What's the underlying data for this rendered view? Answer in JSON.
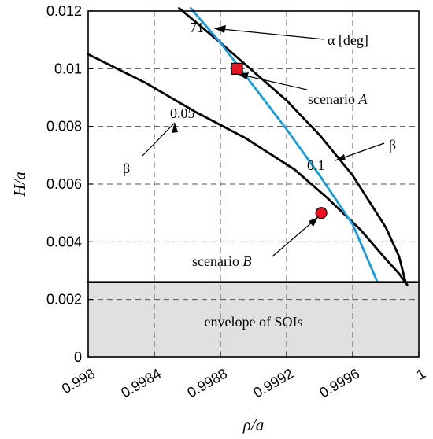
{
  "chart_data": {
    "type": "line",
    "title": "",
    "xlabel": "ρ/a",
    "ylabel": "H/a",
    "xlim": [
      0.998,
      1.0
    ],
    "ylim": [
      0,
      0.012
    ],
    "xticks": [
      0.998,
      0.9984,
      0.9988,
      0.9992,
      0.9996,
      1.0
    ],
    "xtick_labels": [
      "0.998",
      "0.9984",
      "0.9988",
      "0.9992",
      "0.9996",
      "1"
    ],
    "yticks": [
      0,
      0.002,
      0.004,
      0.006,
      0.008,
      0.01,
      0.012
    ],
    "ytick_labels": [
      "0",
      "0.002",
      "0.004",
      "0.006",
      "0.008",
      "0.01",
      "0.012"
    ],
    "grid": true,
    "series": [
      {
        "label": "β 0.05",
        "color": "#000000",
        "x": [
          0.998,
          0.99835,
          0.99865,
          0.99895,
          0.99925,
          0.99945,
          0.99965,
          0.9998,
          0.99988,
          0.99993
        ],
        "y": [
          0.0105,
          0.0095,
          0.0085,
          0.0076,
          0.0065,
          0.0055,
          0.0044,
          0.0034,
          0.0029,
          0.0025
        ]
      },
      {
        "label": "β 0.1",
        "color": "#000000",
        "x": [
          0.99855,
          0.9988,
          0.999,
          0.9992,
          0.9994,
          0.9996,
          0.9998,
          0.99988,
          0.99992
        ],
        "y": [
          0.0121,
          0.0109,
          0.0099,
          0.0089,
          0.0077,
          0.0063,
          0.0045,
          0.0035,
          0.0026
        ]
      },
      {
        "label": "α 71",
        "color": "#1a9ad6",
        "x": [
          0.99862,
          0.9988,
          0.999,
          0.9992,
          0.9994,
          0.9996,
          0.99975
        ],
        "y": [
          0.0121,
          0.0109,
          0.0094,
          0.0079,
          0.0063,
          0.0046,
          0.0026
        ]
      },
      {
        "label": "envelope",
        "color": "#000000",
        "x": [
          0.998,
          1.0
        ],
        "y": [
          0.0026,
          0.0026
        ]
      }
    ],
    "points": [
      {
        "name": "scenario A",
        "x": 0.9989,
        "y": 0.01,
        "marker": "square",
        "color": "#e8141f"
      },
      {
        "name": "scenario B",
        "x": 0.99941,
        "y": 0.005,
        "marker": "circle",
        "color": "#e8141f"
      }
    ],
    "shaded_region": {
      "label": "envelope of SOIs",
      "y_min": 0,
      "y_max": 0.0026,
      "color": "#e0e0e0"
    },
    "annotations": {
      "alpha_value": "71",
      "alpha_label": "α [deg]",
      "beta_low_value": "0.05",
      "beta_high_value": "0.1",
      "beta_symbol": "β",
      "scenario_a_prefix": "scenario ",
      "scenario_a_letter": "A",
      "scenario_b_prefix": "scenario ",
      "scenario_b_letter": "B"
    }
  }
}
